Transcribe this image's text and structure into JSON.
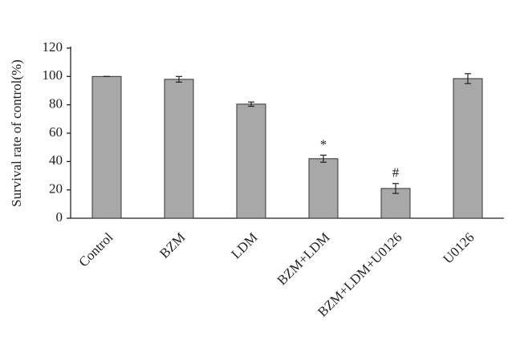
{
  "chart_data": {
    "type": "bar",
    "ylabel": "Survival rate  of control(%)",
    "categories": [
      "Control",
      "BZM",
      "LDM",
      "BZM+LDM",
      "BZM+LDM+U0126",
      "U0126"
    ],
    "values": [
      100,
      98,
      80.5,
      42,
      21,
      98.5
    ],
    "errors": [
      0,
      2,
      1.5,
      2.5,
      3.5,
      3.5
    ],
    "color": "#a8a8a8",
    "annotations": [
      {
        "category": "BZM+LDM",
        "text": "*"
      },
      {
        "category": "BZM+LDM+U0126",
        "text": "#"
      }
    ],
    "ylim": [
      0,
      120
    ],
    "yticks": [
      0,
      20,
      40,
      60,
      80,
      100,
      120
    ],
    "grid": false
  }
}
